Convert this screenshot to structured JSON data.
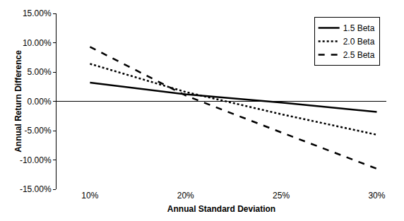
{
  "chart_data": {
    "type": "line",
    "x_label": "Annual Standard Deviation",
    "y_label": "Annual Return Difference",
    "categories": [
      "10%",
      "20%",
      "25%",
      "30%"
    ],
    "series": [
      {
        "name": "1.5 Beta",
        "color": "#000000",
        "line_style": "solid",
        "values": [
          3.2,
          1.2,
          -0.2,
          -1.8
        ]
      },
      {
        "name": "2.0 Beta",
        "color": "#000000",
        "line_style": "dotted",
        "values": [
          6.4,
          1.6,
          -2.2,
          -5.7
        ]
      },
      {
        "name": "2.5 Beta",
        "color": "#000000",
        "line_style": "dashed",
        "values": [
          9.3,
          1.0,
          -5.3,
          -11.5
        ]
      }
    ],
    "ylim": [
      -15,
      15
    ],
    "yticks": [
      {
        "value": -15,
        "label": "-15.00%"
      },
      {
        "value": -10,
        "label": "-10.00%"
      },
      {
        "value": -5,
        "label": "-5.00%"
      },
      {
        "value": 0,
        "label": "0.00%"
      },
      {
        "value": 5,
        "label": "5.00%"
      },
      {
        "value": 10,
        "label": "10.00%"
      },
      {
        "value": 15,
        "label": "15.00%"
      }
    ],
    "grid": false,
    "legend": "top right"
  }
}
